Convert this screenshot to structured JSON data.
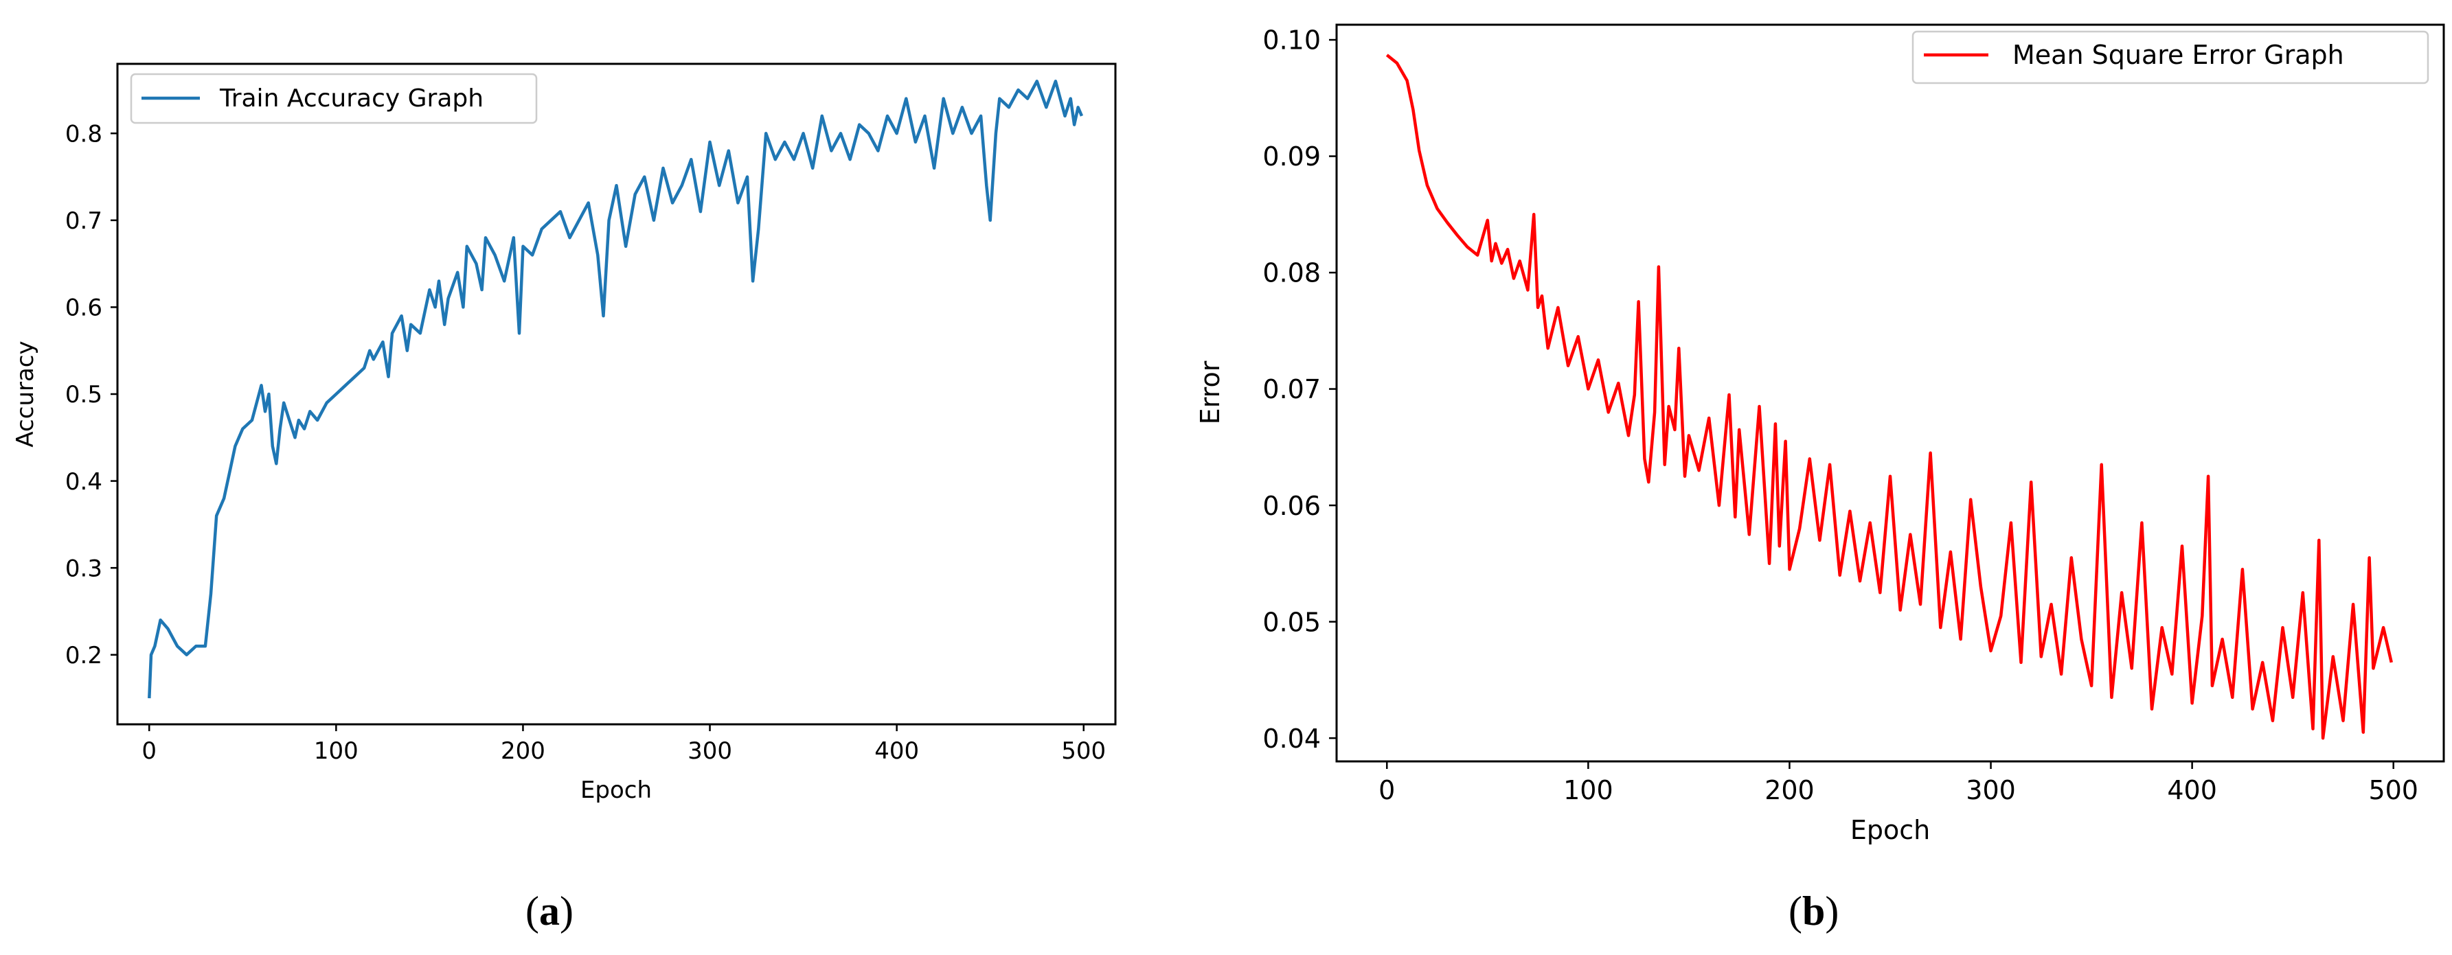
{
  "captions": {
    "a": {
      "open": "(",
      "letter": "a",
      "close": ")"
    },
    "b": {
      "open": "(",
      "letter": "b",
      "close": ")"
    }
  },
  "chart_data": [
    {
      "type": "line",
      "xlabel": "Epoch",
      "ylabel": "Accuracy",
      "xlim": [
        -17,
        517
      ],
      "ylim": [
        0.12,
        0.88
      ],
      "xticks": [
        0,
        100,
        200,
        300,
        400,
        500
      ],
      "yticks": [
        0.2,
        0.3,
        0.4,
        0.5,
        0.6,
        0.7,
        0.8
      ],
      "ytick_labels": [
        "0.2",
        "0.3",
        "0.4",
        "0.5",
        "0.6",
        "0.7",
        "0.8"
      ],
      "grid": false,
      "legend_position": "top-left",
      "series": [
        {
          "name": "Train Accuracy Graph",
          "color": "#1f77b4",
          "x": [
            0,
            1,
            3,
            6,
            10,
            15,
            20,
            25,
            30,
            33,
            36,
            40,
            43,
            46,
            50,
            55,
            60,
            62,
            64,
            66,
            68,
            70,
            72,
            75,
            78,
            80,
            83,
            86,
            90,
            95,
            100,
            105,
            110,
            115,
            118,
            120,
            125,
            128,
            130,
            135,
            138,
            140,
            145,
            150,
            153,
            155,
            158,
            160,
            165,
            168,
            170,
            175,
            178,
            180,
            185,
            190,
            195,
            198,
            200,
            205,
            210,
            215,
            220,
            225,
            230,
            235,
            240,
            243,
            246,
            250,
            255,
            260,
            265,
            270,
            275,
            280,
            285,
            290,
            295,
            300,
            305,
            310,
            315,
            320,
            323,
            326,
            330,
            335,
            340,
            345,
            350,
            355,
            360,
            365,
            370,
            375,
            380,
            385,
            390,
            395,
            400,
            405,
            410,
            415,
            420,
            425,
            430,
            435,
            440,
            445,
            448,
            450,
            453,
            455,
            460,
            465,
            470,
            475,
            480,
            485,
            490,
            493,
            495,
            497,
            499
          ],
          "y": [
            0.15,
            0.2,
            0.21,
            0.24,
            0.23,
            0.21,
            0.2,
            0.21,
            0.21,
            0.27,
            0.36,
            0.38,
            0.41,
            0.44,
            0.46,
            0.47,
            0.51,
            0.48,
            0.5,
            0.44,
            0.42,
            0.46,
            0.49,
            0.47,
            0.45,
            0.47,
            0.46,
            0.48,
            0.47,
            0.49,
            0.5,
            0.51,
            0.52,
            0.53,
            0.55,
            0.54,
            0.56,
            0.52,
            0.57,
            0.59,
            0.55,
            0.58,
            0.57,
            0.62,
            0.6,
            0.63,
            0.58,
            0.61,
            0.64,
            0.6,
            0.67,
            0.65,
            0.62,
            0.68,
            0.66,
            0.63,
            0.68,
            0.57,
            0.67,
            0.66,
            0.69,
            0.7,
            0.71,
            0.68,
            0.7,
            0.72,
            0.66,
            0.59,
            0.7,
            0.74,
            0.67,
            0.73,
            0.75,
            0.7,
            0.76,
            0.72,
            0.74,
            0.77,
            0.71,
            0.79,
            0.74,
            0.78,
            0.72,
            0.75,
            0.63,
            0.69,
            0.8,
            0.77,
            0.79,
            0.77,
            0.8,
            0.76,
            0.82,
            0.78,
            0.8,
            0.77,
            0.81,
            0.8,
            0.78,
            0.82,
            0.8,
            0.84,
            0.79,
            0.82,
            0.76,
            0.84,
            0.8,
            0.83,
            0.8,
            0.82,
            0.74,
            0.7,
            0.8,
            0.84,
            0.83,
            0.85,
            0.84,
            0.86,
            0.83,
            0.86,
            0.82,
            0.84,
            0.81,
            0.83,
            0.82
          ]
        }
      ]
    },
    {
      "type": "line",
      "xlabel": "Epoch",
      "ylabel": "Error",
      "xlim": [
        -25,
        525
      ],
      "ylim": [
        0.038,
        0.1013
      ],
      "xticks": [
        0,
        100,
        200,
        300,
        400,
        500
      ],
      "yticks": [
        0.04,
        0.05,
        0.06,
        0.07,
        0.08,
        0.09,
        0.1
      ],
      "ytick_labels": [
        "0.04",
        "0.05",
        "0.06",
        "0.07",
        "0.08",
        "0.09",
        "0.10"
      ],
      "grid": false,
      "legend_position": "top-right",
      "series": [
        {
          "name": "Mean Square Error Graph",
          "color": "#ff0000",
          "x": [
            0,
            5,
            10,
            13,
            16,
            20,
            25,
            30,
            35,
            40,
            45,
            50,
            52,
            54,
            57,
            60,
            63,
            66,
            70,
            73,
            75,
            77,
            80,
            85,
            90,
            95,
            100,
            105,
            110,
            115,
            120,
            123,
            125,
            128,
            130,
            133,
            135,
            138,
            140,
            143,
            145,
            148,
            150,
            155,
            160,
            165,
            170,
            173,
            175,
            180,
            185,
            190,
            193,
            195,
            198,
            200,
            205,
            210,
            215,
            220,
            225,
            230,
            235,
            240,
            245,
            250,
            255,
            260,
            265,
            270,
            275,
            280,
            285,
            290,
            295,
            300,
            305,
            310,
            315,
            320,
            325,
            330,
            335,
            340,
            345,
            350,
            355,
            360,
            365,
            370,
            375,
            380,
            385,
            390,
            395,
            400,
            405,
            408,
            410,
            415,
            420,
            425,
            430,
            435,
            440,
            445,
            450,
            455,
            460,
            463,
            465,
            470,
            475,
            480,
            485,
            488,
            490,
            495,
            499
          ],
          "y": [
            0.0987,
            0.098,
            0.0965,
            0.094,
            0.0905,
            0.0875,
            0.0855,
            0.0843,
            0.0832,
            0.0822,
            0.0815,
            0.0845,
            0.081,
            0.0825,
            0.0808,
            0.082,
            0.0795,
            0.081,
            0.0785,
            0.085,
            0.077,
            0.078,
            0.0735,
            0.077,
            0.072,
            0.0745,
            0.07,
            0.0725,
            0.068,
            0.0705,
            0.066,
            0.0695,
            0.0775,
            0.064,
            0.062,
            0.068,
            0.0805,
            0.0635,
            0.0685,
            0.0665,
            0.0735,
            0.0625,
            0.066,
            0.063,
            0.0675,
            0.06,
            0.0695,
            0.059,
            0.0665,
            0.0575,
            0.0685,
            0.055,
            0.067,
            0.0565,
            0.0655,
            0.0545,
            0.058,
            0.064,
            0.057,
            0.0635,
            0.054,
            0.0595,
            0.0535,
            0.0585,
            0.0525,
            0.0625,
            0.051,
            0.0575,
            0.0515,
            0.0645,
            0.0495,
            0.056,
            0.0485,
            0.0605,
            0.053,
            0.0475,
            0.0505,
            0.0585,
            0.0465,
            0.062,
            0.047,
            0.0515,
            0.0455,
            0.0555,
            0.0485,
            0.0445,
            0.0635,
            0.0435,
            0.0525,
            0.046,
            0.0585,
            0.0425,
            0.0495,
            0.0455,
            0.0565,
            0.043,
            0.0505,
            0.0625,
            0.0445,
            0.0485,
            0.0435,
            0.0545,
            0.0425,
            0.0465,
            0.0415,
            0.0495,
            0.0435,
            0.0525,
            0.0408,
            0.057,
            0.04,
            0.047,
            0.0415,
            0.0515,
            0.0405,
            0.0555,
            0.046,
            0.0495,
            0.0465
          ]
        }
      ]
    }
  ]
}
